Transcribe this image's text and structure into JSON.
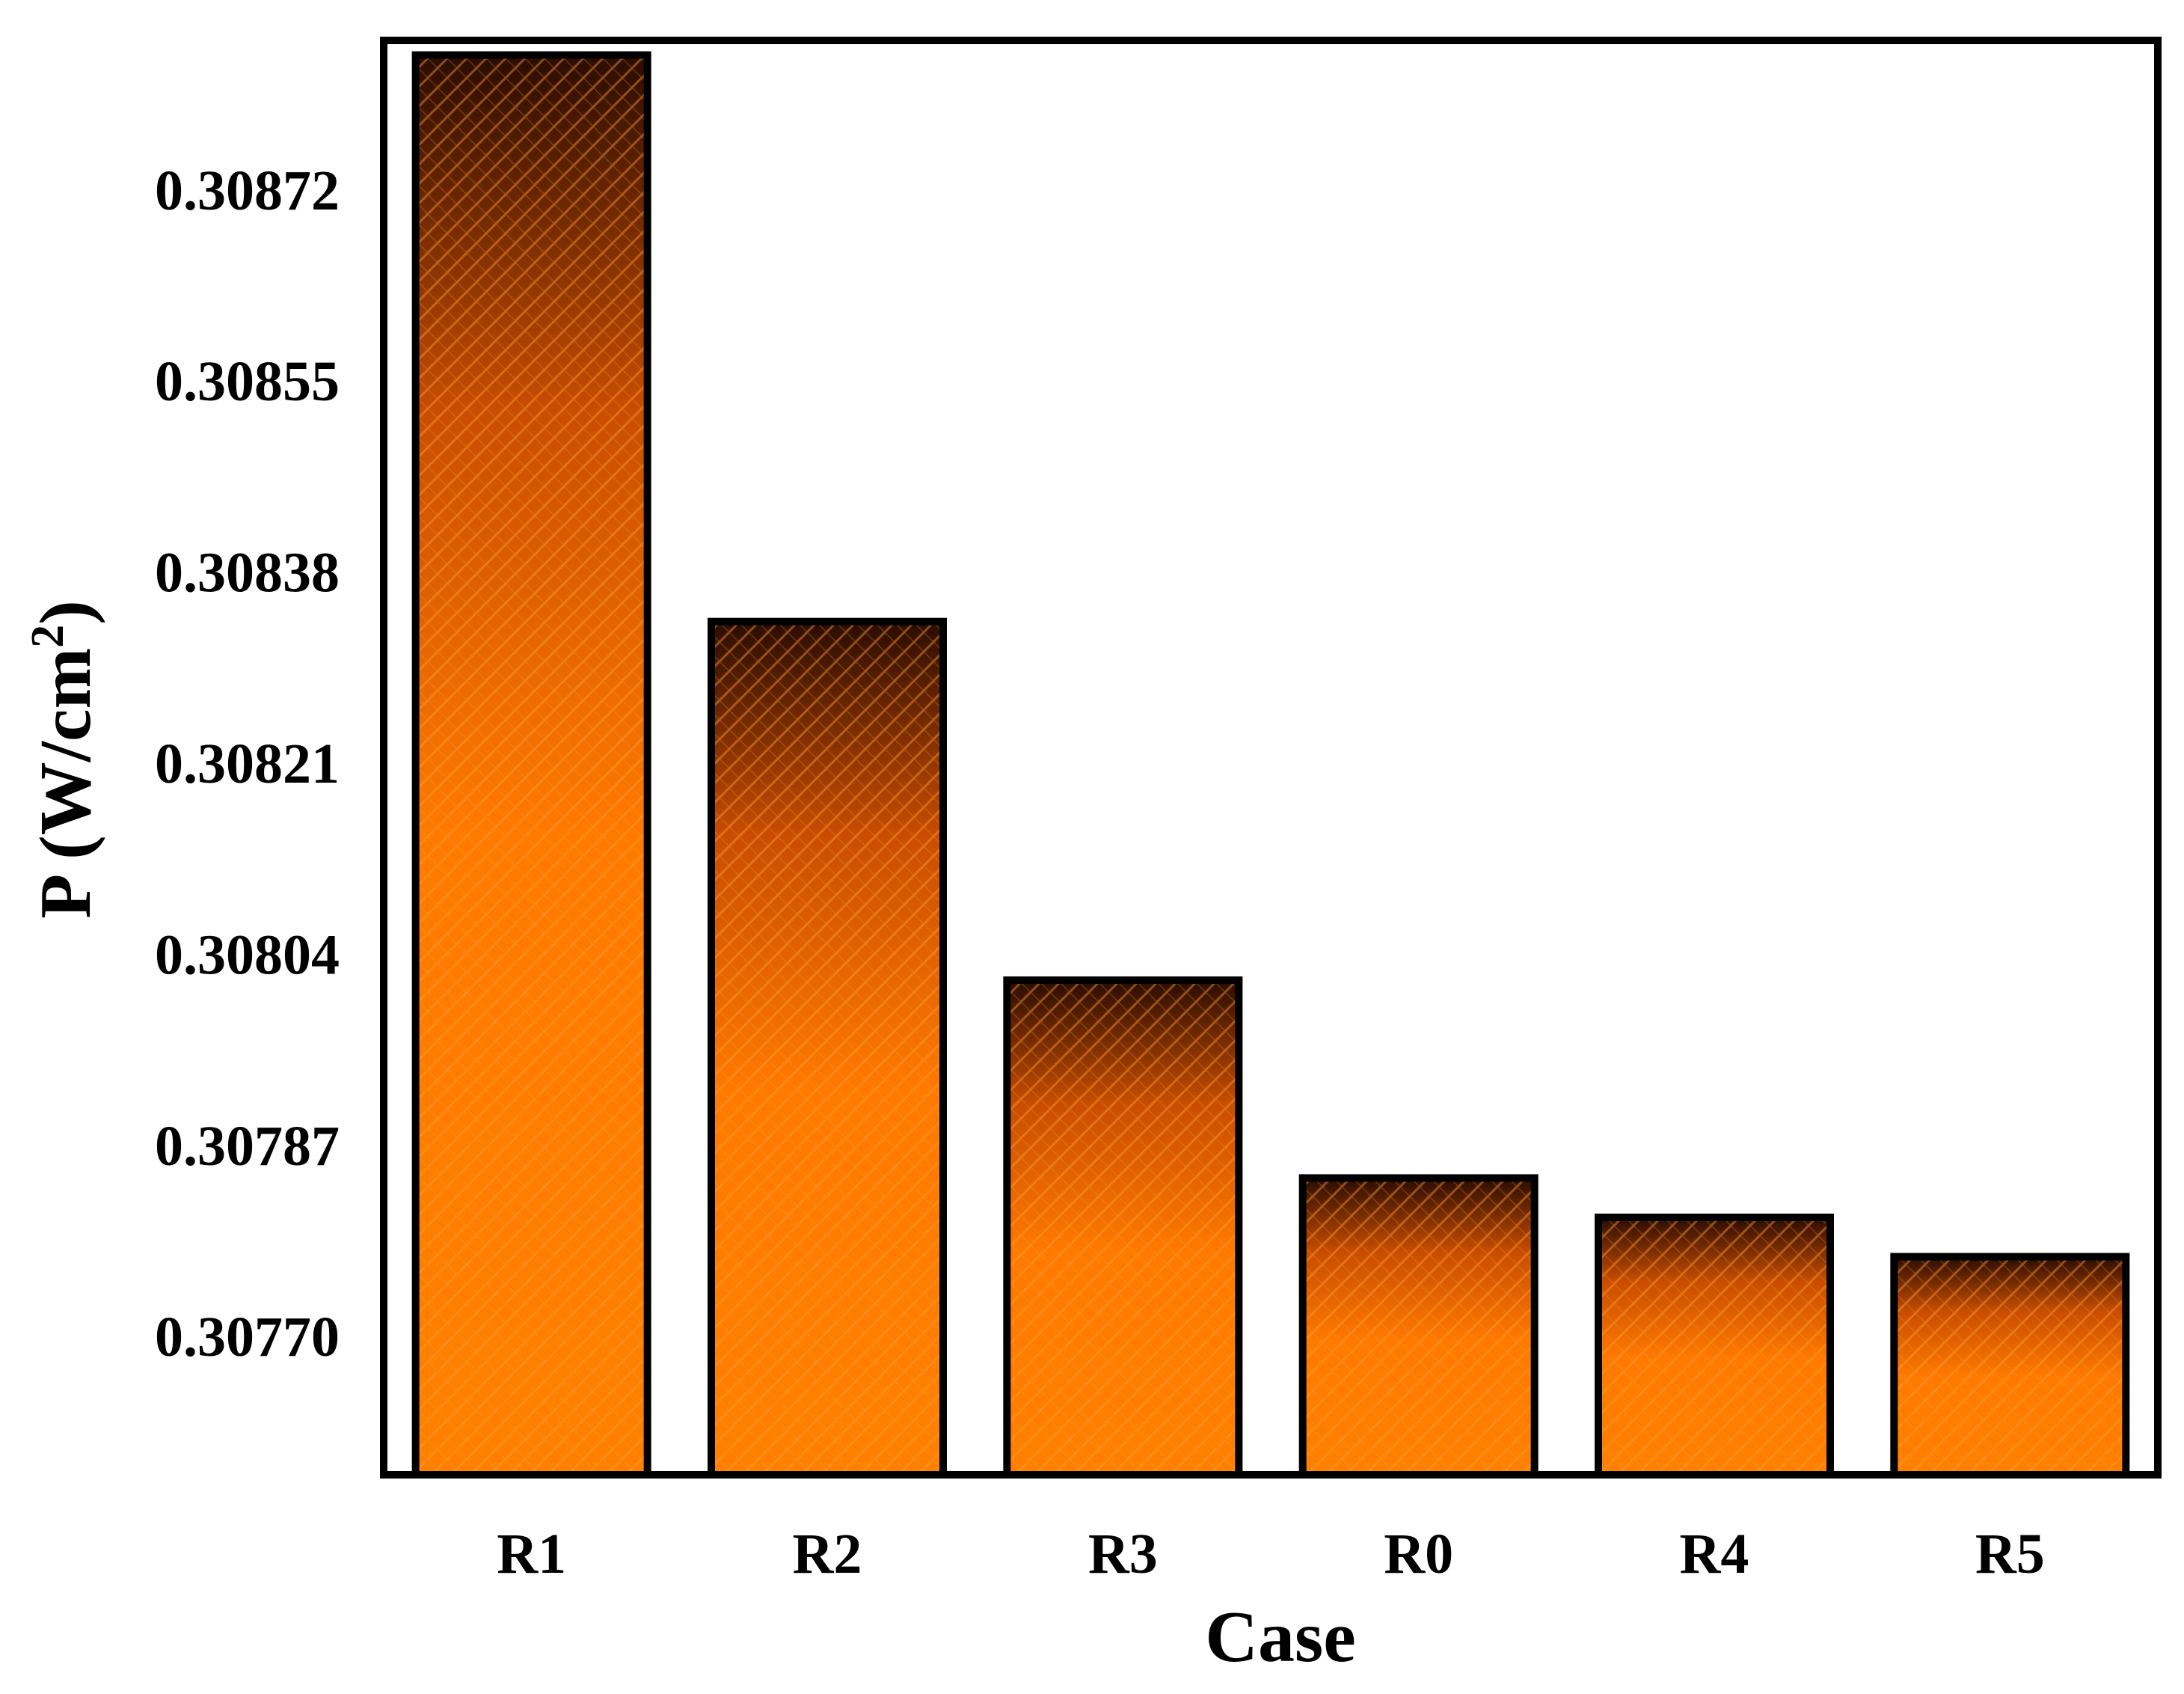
{
  "chart_data": {
    "type": "bar",
    "title": "",
    "xlabel": "Case",
    "ylabel": "P (W/cm",
    "ylabel_sup": "2",
    "ylabel_close": ")",
    "categories": [
      "R1",
      "R2",
      "R3",
      "R0",
      "R4",
      "R5"
    ],
    "values": [
      0.30884,
      0.308336,
      0.308017,
      0.307841,
      0.307806,
      0.307771
    ],
    "yticks": [
      0.3077,
      0.30787,
      0.30804,
      0.30821,
      0.30838,
      0.30855,
      0.30872
    ],
    "ytick_labels": [
      "0.30770",
      "0.30787",
      "0.30804",
      "0.30821",
      "0.30838",
      "0.30855",
      "0.30872"
    ],
    "ylim": [
      0.307577,
      0.308853
    ],
    "grid": false,
    "legend": "none",
    "colors": {
      "bar_bottom": "#ff8000",
      "bar_top": "#2a0c00",
      "hatch": "#ff9a30",
      "outline": "#000000"
    }
  }
}
